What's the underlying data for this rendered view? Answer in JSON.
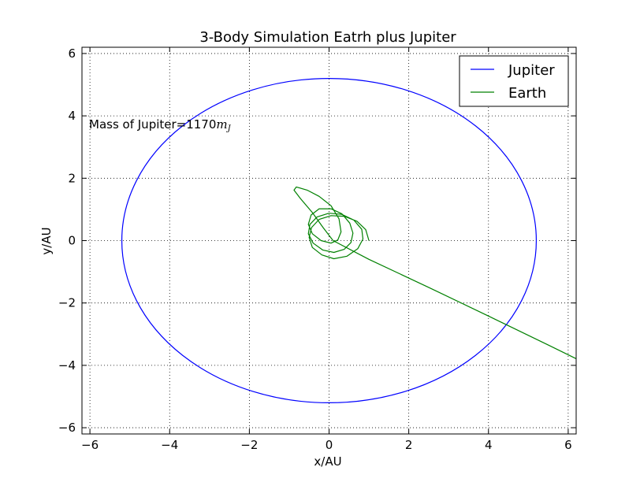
{
  "chart_data": {
    "type": "line",
    "title": "3-Body Simulation Eatrh plus Jupiter",
    "xlabel": "x/AU",
    "ylabel": "y/AU",
    "xlim": [
      -6.2,
      6.2
    ],
    "ylim": [
      -6.2,
      6.2
    ],
    "xticks": [
      -6,
      -4,
      -2,
      0,
      2,
      4,
      6
    ],
    "yticks": [
      -6,
      -4,
      -2,
      0,
      2,
      4,
      6
    ],
    "xtick_labels": [
      "−6",
      "−4",
      "−2",
      "0",
      "2",
      "4",
      "6"
    ],
    "ytick_labels": [
      "−6",
      "−4",
      "−2",
      "0",
      "2",
      "4",
      "6"
    ],
    "grid": true,
    "legend_position": "top-right",
    "annotation": {
      "prefix": "Mass of Jupiter=1170",
      "symbol": "m",
      "subscript": "J"
    },
    "series": [
      {
        "name": "Jupiter",
        "color": "#0000ff",
        "shape": "ellipse",
        "a": 5.2,
        "b": 5.2,
        "center": [
          0,
          0
        ]
      },
      {
        "name": "Earth",
        "color": "#008000",
        "points": [
          [
            1.0,
            0.0
          ],
          [
            0.92,
            0.35
          ],
          [
            0.7,
            0.62
          ],
          [
            0.38,
            0.78
          ],
          [
            0.05,
            0.8
          ],
          [
            -0.25,
            0.68
          ],
          [
            -0.44,
            0.42
          ],
          [
            -0.5,
            0.1
          ],
          [
            -0.42,
            -0.22
          ],
          [
            -0.18,
            -0.46
          ],
          [
            0.12,
            -0.58
          ],
          [
            0.45,
            -0.5
          ],
          [
            0.72,
            -0.26
          ],
          [
            0.85,
            0.05
          ],
          [
            0.82,
            0.36
          ],
          [
            0.62,
            0.66
          ],
          [
            0.32,
            0.84
          ],
          [
            0.0,
            0.88
          ],
          [
            -0.3,
            0.76
          ],
          [
            -0.48,
            0.52
          ],
          [
            -0.52,
            0.22
          ],
          [
            -0.4,
            -0.08
          ],
          [
            -0.16,
            -0.3
          ],
          [
            0.12,
            -0.38
          ],
          [
            0.38,
            -0.28
          ],
          [
            0.55,
            -0.06
          ],
          [
            0.6,
            0.24
          ],
          [
            0.52,
            0.56
          ],
          [
            0.32,
            0.86
          ],
          [
            0.05,
            1.02
          ],
          [
            -0.25,
            1.02
          ],
          [
            -0.45,
            0.82
          ],
          [
            -0.52,
            0.52
          ],
          [
            -0.42,
            0.22
          ],
          [
            -0.2,
            0.0
          ],
          [
            0.05,
            -0.08
          ],
          [
            0.22,
            0.02
          ],
          [
            0.3,
            0.28
          ],
          [
            0.25,
            0.7
          ],
          [
            0.05,
            1.12
          ],
          [
            -0.25,
            1.42
          ],
          [
            -0.55,
            1.62
          ],
          [
            -0.82,
            1.72
          ],
          [
            -0.88,
            1.62
          ],
          [
            -0.72,
            1.35
          ],
          [
            -0.42,
            0.9
          ],
          [
            -0.15,
            0.42
          ],
          [
            0.1,
            0.0
          ],
          [
            1.0,
            -0.6
          ],
          [
            2.5,
            -1.5
          ],
          [
            4.0,
            -2.42
          ],
          [
            5.5,
            -3.35
          ],
          [
            6.3,
            -3.85
          ]
        ]
      }
    ]
  }
}
